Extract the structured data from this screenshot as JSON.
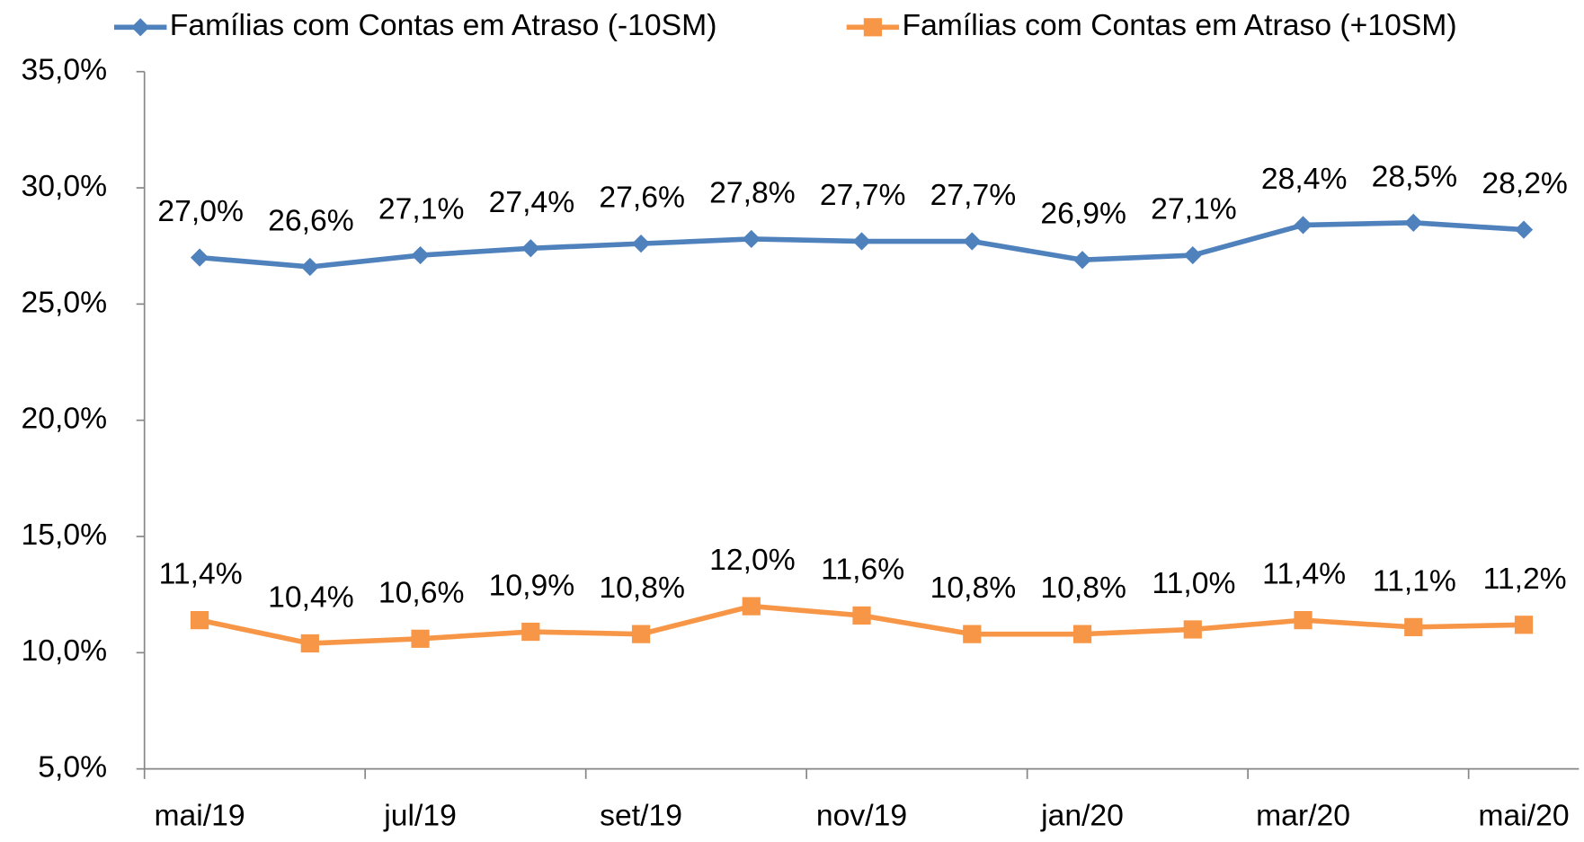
{
  "chart_data": {
    "type": "line",
    "categories": [
      "mai/19",
      null,
      "jul/19",
      null,
      "set/19",
      null,
      "nov/19",
      null,
      "jan/20",
      null,
      "mar/20",
      null,
      "mai/20"
    ],
    "series": [
      {
        "name": "Famílias com Contas em Atraso (-10SM)",
        "color": "#4f81bd",
        "marker": "diamond",
        "values": [
          27.0,
          26.6,
          27.1,
          27.4,
          27.6,
          27.8,
          27.7,
          27.7,
          26.9,
          27.1,
          28.4,
          28.5,
          28.2
        ],
        "value_labels": [
          "27,0%",
          "26,6%",
          "27,1%",
          "27,4%",
          "27,6%",
          "27,8%",
          "27,7%",
          "27,7%",
          "26,9%",
          "27,1%",
          "28,4%",
          "28,5%",
          "28,2%"
        ]
      },
      {
        "name": "Famílias com Contas em Atraso (+10SM)",
        "color": "#f79646",
        "marker": "square",
        "values": [
          11.4,
          10.4,
          10.6,
          10.9,
          10.8,
          12.0,
          11.6,
          10.8,
          10.8,
          11.0,
          11.4,
          11.1,
          11.2
        ],
        "value_labels": [
          "11,4%",
          "10,4%",
          "10,6%",
          "10,9%",
          "10,8%",
          "12,0%",
          "11,6%",
          "10,8%",
          "10,8%",
          "11,0%",
          "11,4%",
          "11,1%",
          "11,2%"
        ]
      }
    ],
    "ylim": [
      5,
      35
    ],
    "yticks": [
      {
        "value": 5,
        "label": "5,0%"
      },
      {
        "value": 10,
        "label": "10,0%"
      },
      {
        "value": 15,
        "label": "15,0%"
      },
      {
        "value": 20,
        "label": "20,0%"
      },
      {
        "value": 25,
        "label": "25,0%"
      },
      {
        "value": 30,
        "label": "30,0%"
      },
      {
        "value": 35,
        "label": "35,0%"
      }
    ],
    "grid": false,
    "legend": "top"
  }
}
